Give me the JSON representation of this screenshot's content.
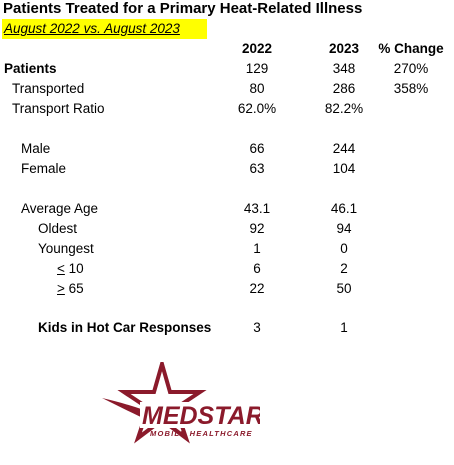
{
  "title": "Patients Treated for a Primary Heat-Related Illness",
  "subtitle": "August 2022 vs. August 2023",
  "headers": {
    "y2022": "2022",
    "y2023": "2023",
    "pct": "% Change"
  },
  "rows": {
    "patients": {
      "label": "Patients",
      "y2022": "129",
      "y2023": "348",
      "pct": "270%"
    },
    "transported": {
      "label": "Transported",
      "y2022": "80",
      "y2023": "286",
      "pct": "358%"
    },
    "ratio": {
      "label": "Transport Ratio",
      "y2022": "62.0%",
      "y2023": "82.2%"
    },
    "male": {
      "label": "Male",
      "y2022": "66",
      "y2023": "244"
    },
    "female": {
      "label": "Female",
      "y2022": "63",
      "y2023": "104"
    },
    "avg_age": {
      "label": "Average Age",
      "y2022": "43.1",
      "y2023": "46.1"
    },
    "oldest": {
      "label": "Oldest",
      "y2022": "92",
      "y2023": "94"
    },
    "youngest": {
      "label": "Youngest",
      "y2022": "1",
      "y2023": "0"
    },
    "le10": {
      "label": "< 10",
      "y2022": "6",
      "y2023": "2"
    },
    "ge65": {
      "label": "> 65",
      "y2022": "22",
      "y2023": "50"
    },
    "kids": {
      "label": "Kids in Hot Car Responses",
      "y2022": "3",
      "y2023": "1"
    }
  },
  "logo": {
    "name": "MEDSTAR",
    "tagline": "MOBILE HEALTHCARE",
    "color": "#8b1a2b"
  }
}
